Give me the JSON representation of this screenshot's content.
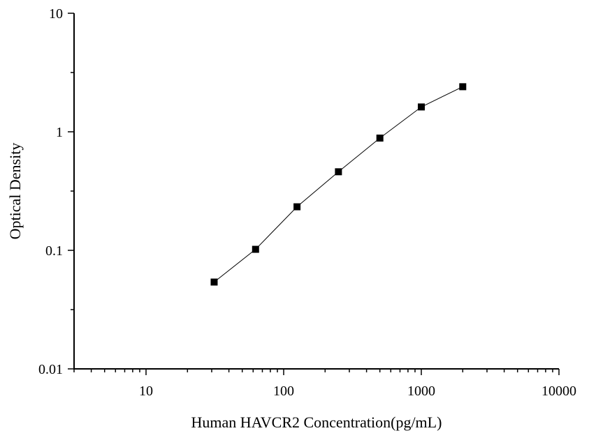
{
  "chart_data": {
    "type": "line",
    "title": "",
    "xlabel": "Human HAVCR2 Concentration(pg/mL)",
    "ylabel": "Optical Density",
    "x_scale": "log",
    "y_scale": "log",
    "xlim": [
      3,
      10000
    ],
    "ylim": [
      0.01,
      10
    ],
    "x_ticks": [
      {
        "value": 10,
        "label": "10"
      },
      {
        "value": 100,
        "label": "100"
      },
      {
        "value": 1000,
        "label": "1000"
      },
      {
        "value": 10000,
        "label": "10000"
      }
    ],
    "y_ticks": [
      {
        "value": 0.01,
        "label": "0.01"
      },
      {
        "value": 0.1,
        "label": "0.1"
      },
      {
        "value": 1,
        "label": "1"
      },
      {
        "value": 10,
        "label": "10"
      }
    ],
    "grid": false,
    "legend": "none",
    "series": [
      {
        "x": [
          31.25,
          62.5,
          125,
          250,
          500,
          1000,
          2000
        ],
        "y": [
          0.054,
          0.102,
          0.233,
          0.46,
          0.885,
          1.62,
          2.4
        ],
        "color": "#000000",
        "marker": "square"
      }
    ]
  }
}
